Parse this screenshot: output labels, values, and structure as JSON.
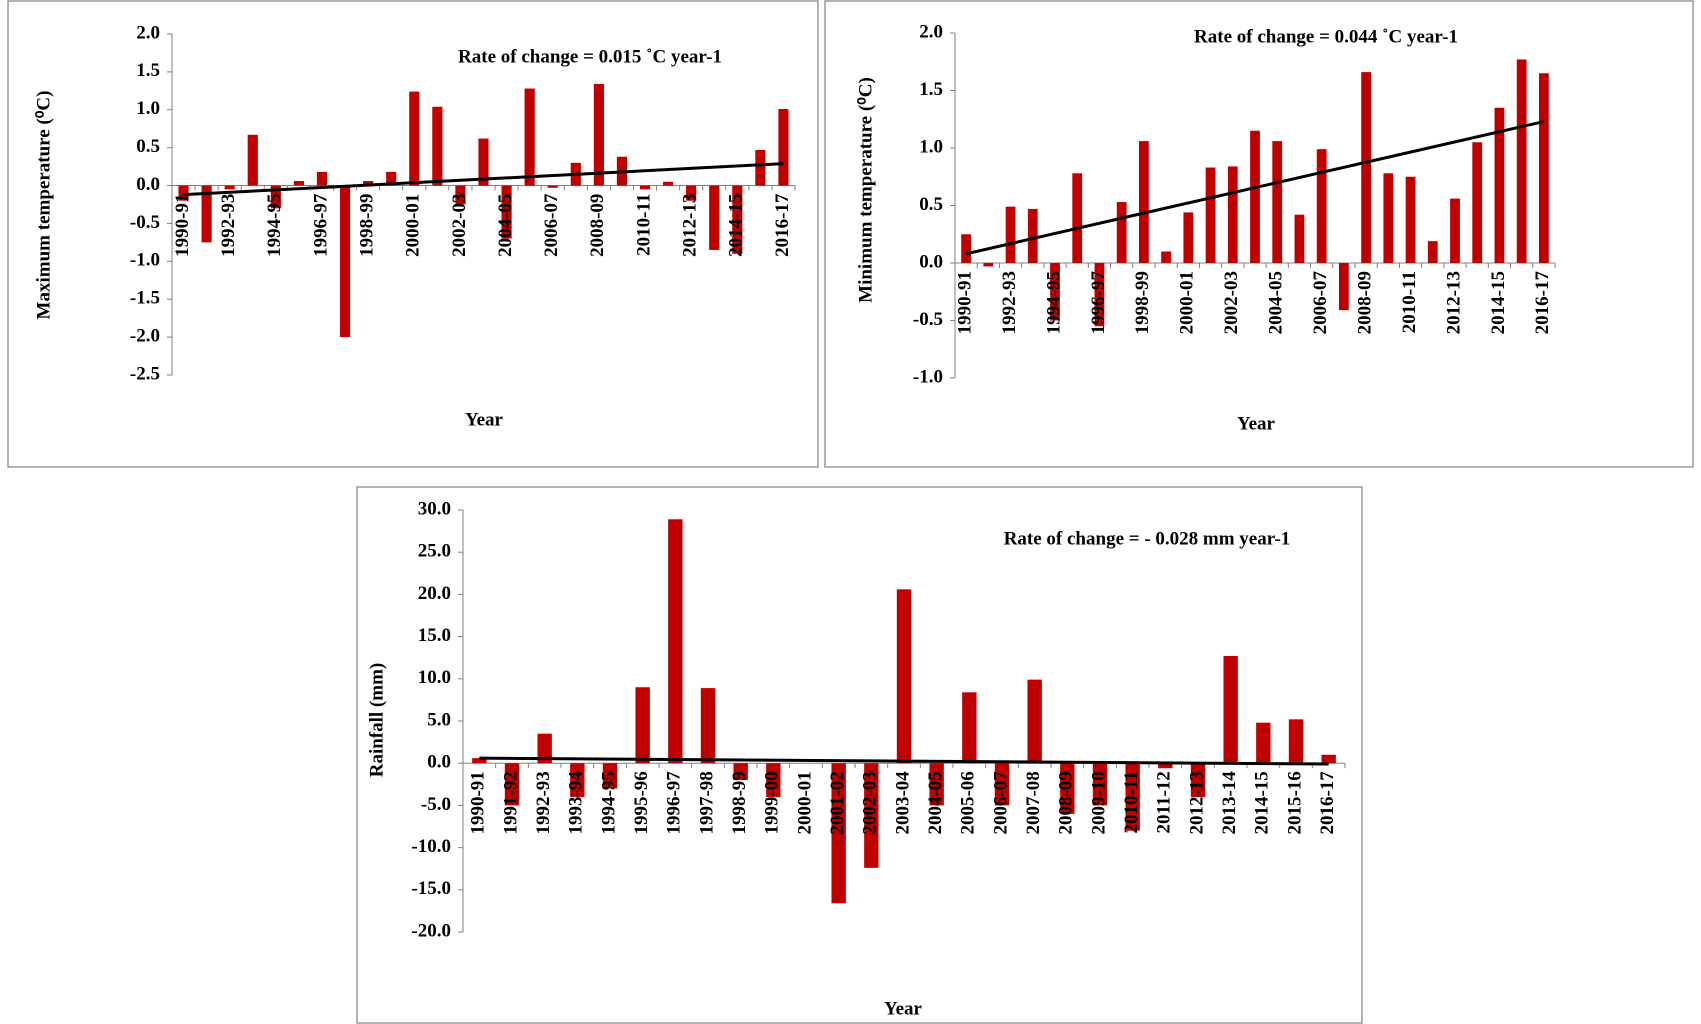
{
  "chart_data": [
    {
      "type": "bar",
      "annotation": "Rate of change  = 0.015 ˚C year-1",
      "y_label": "Maximum temperature (⁰C)",
      "x_label": "Year",
      "categories": [
        "1990-91",
        null,
        "1992-93",
        null,
        "1994-95",
        null,
        "1996-97",
        null,
        "1998-99",
        null,
        "2000-01",
        null,
        "2002-03",
        null,
        "2004-05",
        null,
        "2006-07",
        null,
        "2008-09",
        null,
        "2010-11",
        null,
        "2012-13",
        null,
        "2014-15",
        null,
        "2016-17"
      ],
      "values": [
        -0.2,
        -0.75,
        -0.05,
        0.67,
        -0.3,
        0.06,
        0.18,
        -2.0,
        0.06,
        0.18,
        1.24,
        1.04,
        -0.25,
        0.62,
        -0.7,
        1.28,
        -0.03,
        0.3,
        1.34,
        0.38,
        -0.05,
        0.05,
        -0.2,
        -0.85,
        -0.9,
        0.47,
        1.01
      ],
      "color": "#c00000",
      "trend": [
        -0.12,
        0.29
      ],
      "trend_color": "#000000",
      "ylim": [
        -2.5,
        2.0
      ],
      "yticks": [
        {
          "value": -2.5,
          "label": "-2.5"
        },
        {
          "value": -2.0,
          "label": "-2.0"
        },
        {
          "value": -1.5,
          "label": "-1.5"
        },
        {
          "value": -1.0,
          "label": "-1.0"
        },
        {
          "value": -0.5,
          "label": "-0.5"
        },
        {
          "value": 0,
          "label": "0.0"
        },
        {
          "value": 0.5,
          "label": "0.5"
        },
        {
          "value": 1.0,
          "label": "1.0"
        },
        {
          "value": 1.5,
          "label": "1.5"
        },
        {
          "value": 2.0,
          "label": "2.0"
        }
      ]
    },
    {
      "type": "bar",
      "annotation": "Rate of change = 0.044 ˚C year-1",
      "y_label": "Minimum temperature (⁰C)",
      "x_label": "Year",
      "categories": [
        "1990-91",
        null,
        "1992-93",
        null,
        "1994-95",
        null,
        "1996-97",
        null,
        "1998-99",
        null,
        "2000-01",
        null,
        "2002-03",
        null,
        "2004-05",
        null,
        "2006-07",
        null,
        "2008-09",
        null,
        "2010-11",
        null,
        "2012-13",
        null,
        "2014-15",
        null,
        "2016-17"
      ],
      "values": [
        0.25,
        -0.03,
        0.49,
        0.47,
        -0.5,
        0.78,
        -0.55,
        0.53,
        1.06,
        0.1,
        0.44,
        0.83,
        0.84,
        1.15,
        1.06,
        0.42,
        0.99,
        -0.41,
        1.66,
        0.78,
        0.75,
        0.19,
        0.56,
        1.05,
        1.35,
        1.77,
        1.65
      ],
      "color": "#c00000",
      "trend": [
        0.08,
        1.23
      ],
      "trend_color": "#000000",
      "ylim": [
        -1.0,
        2.0
      ],
      "yticks": [
        {
          "value": -1.0,
          "label": "-1.0"
        },
        {
          "value": -0.5,
          "label": "-0.5"
        },
        {
          "value": 0,
          "label": "0.0"
        },
        {
          "value": 0.5,
          "label": "0.5"
        },
        {
          "value": 1.0,
          "label": "1.0"
        },
        {
          "value": 1.5,
          "label": "1.5"
        },
        {
          "value": 2.0,
          "label": "2.0"
        }
      ]
    },
    {
      "type": "bar",
      "annotation": "Rate of change = - 0.028 mm year-1",
      "y_label": "Rainfall (mm)",
      "x_label": "Year",
      "categories": [
        "1990-91",
        "1991-92",
        "1992-93",
        "1993-94",
        "1994-95",
        "1995-96",
        "1996-97",
        "1997-98",
        "1998-99",
        "1999-00",
        "2000-01",
        "2001-02",
        "2002-03",
        "2003-04",
        "2004-05",
        "2005-06",
        "2006-07",
        "2007-08",
        "2008-09",
        "2009-10",
        "2010-11",
        "2011-12",
        "2012-13",
        "2013-14",
        "2014-15",
        "2015-16",
        "2016-17"
      ],
      "values": [
        0.6,
        -5,
        3.5,
        -4,
        -3,
        9.0,
        28.9,
        8.9,
        -2,
        -4,
        0,
        -16.6,
        -12.4,
        20.6,
        -5,
        8.4,
        -5,
        9.9,
        -6,
        -5,
        -8,
        -0.6,
        -4,
        12.7,
        4.8,
        5.2,
        1.0
      ],
      "color": "#c00000",
      "trend": [
        0.6,
        -0.1
      ],
      "trend_color": "#000000",
      "ylim": [
        -20,
        30
      ],
      "yticks": [
        {
          "value": -20,
          "label": "-20.0"
        },
        {
          "value": -15,
          "label": "-15.0"
        },
        {
          "value": -10,
          "label": "-10.0"
        },
        {
          "value": -5,
          "label": "-5.0"
        },
        {
          "value": 0,
          "label": "0.0"
        },
        {
          "value": 5,
          "label": "5.0"
        },
        {
          "value": 10,
          "label": "10.0"
        },
        {
          "value": 15,
          "label": "15.0"
        },
        {
          "value": 20,
          "label": "20.0"
        },
        {
          "value": 25,
          "label": "25.0"
        },
        {
          "value": 30,
          "label": "30.0"
        }
      ]
    }
  ]
}
